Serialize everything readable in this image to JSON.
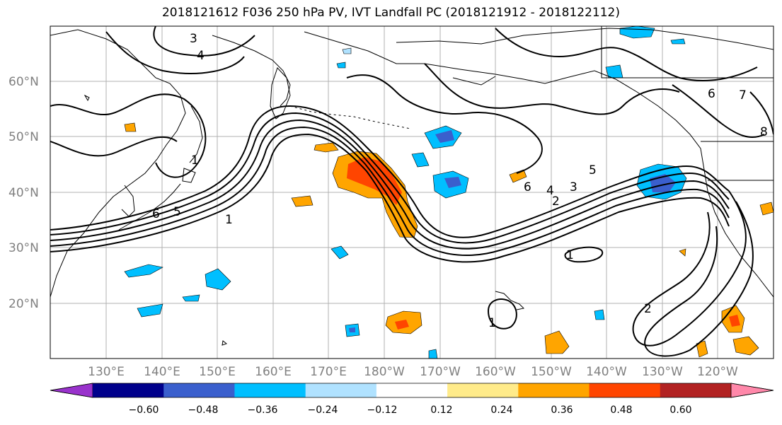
{
  "title": "2018121612 F036 250 hPa PV, IVT Landfall PC (2018121912 - 2018122112)",
  "lat_labels": [
    "60°N",
    "50°N",
    "40°N",
    "30°N",
    "20°N"
  ],
  "lon_labels": [
    "130°E",
    "140°E",
    "150°E",
    "160°E",
    "170°E",
    "180°W",
    "170°W",
    "160°W",
    "150°W",
    "140°W",
    "130°W",
    "120°W"
  ],
  "contour_labels": [
    "3",
    "4",
    "1",
    "6",
    "5",
    "1",
    "6",
    "4",
    "3",
    "2",
    "5",
    "1",
    "1",
    "2",
    "6",
    "7",
    "8"
  ],
  "colorbar": {
    "ticks": [
      "−0.60",
      "−0.48",
      "−0.36",
      "−0.24",
      "−0.12",
      "0.12",
      "0.24",
      "0.36",
      "0.48",
      "0.60"
    ],
    "colors": [
      "#9932cc",
      "#00008b",
      "#3a5fcd",
      "#00bfff",
      "#b0e2ff",
      "#ffffff",
      "#ffeb8a",
      "#ffa500",
      "#ff4500",
      "#b22222",
      "#ff88aa"
    ]
  },
  "colors": {
    "grid": "#b0b0b0",
    "label": "#808080"
  }
}
